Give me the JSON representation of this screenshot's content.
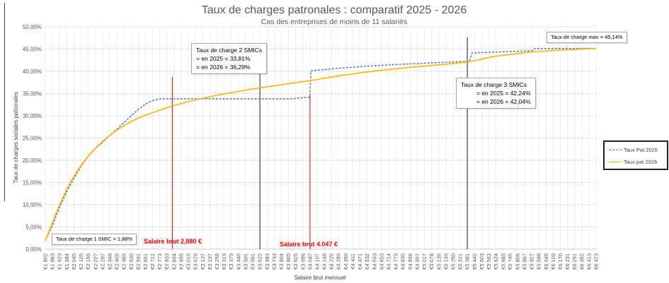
{
  "chart_data": {
    "type": "line",
    "title": "Taux de charges patronales : comparatif 2025 - 2026",
    "subtitle": "Cas des entreprises de moins de 11 salariés",
    "xlabel": "Salaire brut mensuel",
    "ylabel": "Taux de charges sociales patronales",
    "ylim": [
      0,
      50
    ],
    "yticks": [
      "0,00%",
      "5,00%",
      "10,00%",
      "15,00%",
      "20,00%",
      "25,00%",
      "30,00%",
      "35,00%",
      "40,00%",
      "45,00%",
      "50,00%"
    ],
    "x_ticks": [
      "€1 802",
      "€1 863",
      "€1 923",
      "€1 984",
      "€2 045",
      "€2 105",
      "€2 166",
      "€2 227",
      "€2 287",
      "€2 348",
      "€2 409",
      "€2 469",
      "€2 530",
      "€2 591",
      "€2 651",
      "€2 712",
      "€2 773",
      "€2 833",
      "€2 894",
      "€2 955",
      "€3 015",
      "€3 076",
      "€3 137",
      "€3 197",
      "€3 258",
      "€3 319",
      "€3 379",
      "€3 440",
      "€3 501",
      "€3 561",
      "€3 622",
      "€3 683",
      "€3 743",
      "€3 804",
      "€3 865",
      "€3 925",
      "€3 986",
      "€4 047",
      "€4 107",
      "€4 168",
      "€4 229",
      "€4 289",
      "€4 350",
      "€4 411",
      "€4 471",
      "€4 532",
      "€4 593",
      "€4 653",
      "€4 714",
      "€4 775",
      "€4 835",
      "€4 896",
      "€4 957",
      "€5 017",
      "€5 078",
      "€5 139",
      "€5 199",
      "€5 260",
      "€5 321",
      "€5 381",
      "€5 442",
      "€5 503",
      "€5 563",
      "€5 624",
      "€5 685",
      "€5 745",
      "€5 806",
      "€5 867",
      "€5 927",
      "€5 988",
      "€6 049",
      "€6 109",
      "€6 170",
      "€6 231",
      "€6 291",
      "€6 352",
      "€6 413",
      "€6 473"
    ],
    "series": [
      {
        "name": "Taux Pat 2025",
        "color": "#4472c4",
        "style": "dashed",
        "points": [
          [
            1802,
            1.88
          ],
          [
            1860,
            5.2
          ],
          [
            1920,
            9.2
          ],
          [
            1985,
            13.0
          ],
          [
            2050,
            16.2
          ],
          [
            2110,
            18.8
          ],
          [
            2170,
            21.0
          ],
          [
            2230,
            22.7
          ],
          [
            2290,
            24.1
          ],
          [
            2350,
            25.6
          ],
          [
            2410,
            27.0
          ],
          [
            2470,
            28.5
          ],
          [
            2530,
            30.0
          ],
          [
            2590,
            31.4
          ],
          [
            2650,
            32.6
          ],
          [
            2710,
            33.4
          ],
          [
            2775,
            33.81
          ],
          [
            3000,
            33.81
          ],
          [
            3500,
            33.81
          ],
          [
            3900,
            33.81
          ],
          [
            3980,
            34.05
          ],
          [
            4045,
            34.2
          ],
          [
            4055,
            40.1
          ],
          [
            4250,
            40.6
          ],
          [
            4500,
            41.1
          ],
          [
            4750,
            41.5
          ],
          [
            5000,
            41.8
          ],
          [
            5200,
            42.05
          ],
          [
            5381,
            42.24
          ],
          [
            5400,
            42.3
          ],
          [
            5420,
            44.1
          ],
          [
            5600,
            44.3
          ],
          [
            5800,
            44.5
          ],
          [
            5925,
            44.6
          ],
          [
            5938,
            44.7
          ],
          [
            5950,
            45.1
          ],
          [
            6100,
            45.12
          ],
          [
            6300,
            45.13
          ],
          [
            6473,
            45.14
          ]
        ]
      },
      {
        "name": "Taux pat 2026",
        "color": "#ffb400",
        "style": "solid",
        "points": [
          [
            1802,
            1.88
          ],
          [
            1860,
            5.8
          ],
          [
            1920,
            9.8
          ],
          [
            1985,
            13.6
          ],
          [
            2050,
            16.6
          ],
          [
            2110,
            19.0
          ],
          [
            2170,
            21.1
          ],
          [
            2230,
            22.8
          ],
          [
            2290,
            24.3
          ],
          [
            2350,
            25.6
          ],
          [
            2410,
            26.8
          ],
          [
            2470,
            27.8
          ],
          [
            2530,
            28.7
          ],
          [
            2600,
            29.6
          ],
          [
            2700,
            30.6
          ],
          [
            2800,
            31.5
          ],
          [
            2880,
            32.2
          ],
          [
            3000,
            33.1
          ],
          [
            3200,
            34.3
          ],
          [
            3400,
            35.3
          ],
          [
            3622,
            36.29
          ],
          [
            3800,
            36.95
          ],
          [
            4047,
            37.9
          ],
          [
            4300,
            39.0
          ],
          [
            4600,
            40.1
          ],
          [
            4900,
            40.9
          ],
          [
            5200,
            41.6
          ],
          [
            5381,
            42.04
          ],
          [
            5600,
            43.3
          ],
          [
            5900,
            44.3
          ],
          [
            6200,
            44.8
          ],
          [
            6473,
            45.14
          ]
        ]
      }
    ],
    "vertical_lines": [
      {
        "x": 2880,
        "color": "#ff0000"
      },
      {
        "x": 4047,
        "color": "#ff0000"
      },
      {
        "x": 3622,
        "color": "#404040"
      },
      {
        "x": 5381,
        "color": "#404040"
      }
    ],
    "legend": {
      "position": "right",
      "entries": [
        "Taux Pat 2025",
        "Taux pat 2026"
      ]
    },
    "annotations": {
      "smic1": "Taux de charge 1 SMIC = 1,88%",
      "smic2_title": "Taux de charge 2 SMICs",
      "smic2_2025": "= en 2025 = 33,81%",
      "smic2_2026": "= en 2026 = 36,29%",
      "smic3_title": "Taux de charge 3 SMICs",
      "smic3_2025": "= en 2025 = 42,24%",
      "smic3_2026": "= en 2026 = 42,04%",
      "max": "Taux de charge max = 45,14%",
      "salaire1": "Salaire brut 2,880 €",
      "salaire2": "Salaire brut 4.047 €"
    },
    "grid": true
  }
}
